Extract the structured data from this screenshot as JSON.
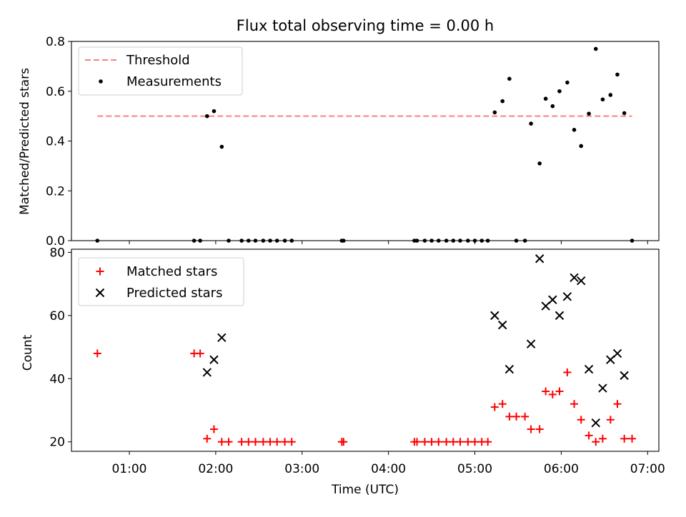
{
  "chart_data": [
    {
      "type": "scatter",
      "title": "Flux total observing time = 0.00 h",
      "ylabel": "Matched/Predicted stars",
      "xlim": [
        0.33,
        7.13
      ],
      "ylim": [
        0,
        0.8
      ],
      "yticks": [
        0.0,
        0.2,
        0.4,
        0.6,
        0.8
      ],
      "ytick_labels": [
        "0.0",
        "0.2",
        "0.4",
        "0.6",
        "0.8"
      ],
      "legend_position": "top-left",
      "legend": [
        {
          "label": "Threshold",
          "style": "dashed-line",
          "color": "#ff7f7f"
        },
        {
          "label": "Measurements",
          "style": "dot",
          "color": "#000000"
        }
      ],
      "threshold": {
        "value": 0.5,
        "x_start": 0.63,
        "x_end": 6.82
      },
      "series": [
        {
          "label": "Measurements",
          "color": "#000000",
          "points": [
            [
              0.63,
              0.0
            ],
            [
              1.75,
              0.0
            ],
            [
              1.82,
              0.0
            ],
            [
              1.9,
              0.5
            ],
            [
              1.98,
              0.52
            ],
            [
              2.07,
              0.377
            ],
            [
              2.15,
              0.0
            ],
            [
              2.3,
              0.0
            ],
            [
              2.38,
              0.0
            ],
            [
              2.46,
              0.0
            ],
            [
              2.55,
              0.0
            ],
            [
              2.63,
              0.0
            ],
            [
              2.71,
              0.0
            ],
            [
              2.8,
              0.0
            ],
            [
              2.88,
              0.0
            ],
            [
              3.46,
              0.0
            ],
            [
              3.48,
              0.0
            ],
            [
              4.3,
              0.0
            ],
            [
              4.33,
              0.0
            ],
            [
              4.42,
              0.0
            ],
            [
              4.5,
              0.0
            ],
            [
              4.58,
              0.0
            ],
            [
              4.67,
              0.0
            ],
            [
              4.75,
              0.0
            ],
            [
              4.83,
              0.0
            ],
            [
              4.92,
              0.0
            ],
            [
              5.0,
              0.0
            ],
            [
              5.08,
              0.0
            ],
            [
              5.15,
              0.0
            ],
            [
              5.23,
              0.515
            ],
            [
              5.32,
              0.56
            ],
            [
              5.4,
              0.65
            ],
            [
              5.48,
              0.0
            ],
            [
              5.58,
              0.0
            ],
            [
              5.65,
              0.47
            ],
            [
              5.75,
              0.31
            ],
            [
              5.82,
              0.57
            ],
            [
              5.9,
              0.54
            ],
            [
              5.98,
              0.6
            ],
            [
              6.07,
              0.635
            ],
            [
              6.15,
              0.445
            ],
            [
              6.23,
              0.38
            ],
            [
              6.32,
              0.51
            ],
            [
              6.4,
              0.77
            ],
            [
              6.48,
              0.567
            ],
            [
              6.57,
              0.585
            ],
            [
              6.65,
              0.667
            ],
            [
              6.73,
              0.512
            ],
            [
              6.82,
              0.0
            ]
          ]
        }
      ]
    },
    {
      "type": "scatter",
      "xlabel": "Time (UTC)",
      "ylabel": "Count",
      "xlim": [
        0.33,
        7.13
      ],
      "ylim": [
        17,
        81
      ],
      "xticks": [
        1,
        2,
        3,
        4,
        5,
        6,
        7
      ],
      "xtick_labels": [
        "01:00",
        "02:00",
        "03:00",
        "04:00",
        "05:00",
        "06:00",
        "07:00"
      ],
      "yticks": [
        20,
        40,
        60,
        80
      ],
      "ytick_labels": [
        "20",
        "40",
        "60",
        "80"
      ],
      "legend_position": "top-left",
      "legend": [
        {
          "label": "Matched stars",
          "style": "plus",
          "color": "#ff0000"
        },
        {
          "label": "Predicted stars",
          "style": "x",
          "color": "#000000"
        }
      ],
      "series": [
        {
          "label": "Matched stars",
          "marker": "plus",
          "color": "#ff0000",
          "points": [
            [
              0.63,
              48
            ],
            [
              1.75,
              48
            ],
            [
              1.82,
              48
            ],
            [
              1.9,
              21
            ],
            [
              1.98,
              24
            ],
            [
              2.07,
              20
            ],
            [
              2.15,
              20
            ],
            [
              2.3,
              20
            ],
            [
              2.38,
              20
            ],
            [
              2.46,
              20
            ],
            [
              2.55,
              20
            ],
            [
              2.63,
              20
            ],
            [
              2.71,
              20
            ],
            [
              2.8,
              20
            ],
            [
              2.88,
              20
            ],
            [
              3.46,
              20
            ],
            [
              3.48,
              20
            ],
            [
              4.3,
              20
            ],
            [
              4.33,
              20
            ],
            [
              4.42,
              20
            ],
            [
              4.5,
              20
            ],
            [
              4.58,
              20
            ],
            [
              4.67,
              20
            ],
            [
              4.75,
              20
            ],
            [
              4.83,
              20
            ],
            [
              4.92,
              20
            ],
            [
              5.0,
              20
            ],
            [
              5.08,
              20
            ],
            [
              5.15,
              20
            ],
            [
              5.23,
              31
            ],
            [
              5.32,
              32
            ],
            [
              5.4,
              28
            ],
            [
              5.48,
              28
            ],
            [
              5.58,
              28
            ],
            [
              5.65,
              24
            ],
            [
              5.75,
              24
            ],
            [
              5.82,
              36
            ],
            [
              5.9,
              35
            ],
            [
              5.98,
              36
            ],
            [
              6.07,
              42
            ],
            [
              6.15,
              32
            ],
            [
              6.23,
              27
            ],
            [
              6.32,
              22
            ],
            [
              6.4,
              20
            ],
            [
              6.48,
              21
            ],
            [
              6.57,
              27
            ],
            [
              6.65,
              32
            ],
            [
              6.73,
              21
            ],
            [
              6.82,
              21
            ]
          ]
        },
        {
          "label": "Predicted stars",
          "marker": "x",
          "color": "#000000",
          "points": [
            [
              1.9,
              42
            ],
            [
              1.98,
              46
            ],
            [
              2.07,
              53
            ],
            [
              5.23,
              60
            ],
            [
              5.32,
              57
            ],
            [
              5.4,
              43
            ],
            [
              5.65,
              51
            ],
            [
              5.75,
              78
            ],
            [
              5.82,
              63
            ],
            [
              5.9,
              65
            ],
            [
              5.98,
              60
            ],
            [
              6.07,
              66
            ],
            [
              6.15,
              72
            ],
            [
              6.23,
              71
            ],
            [
              6.32,
              43
            ],
            [
              6.4,
              26
            ],
            [
              6.48,
              37
            ],
            [
              6.57,
              46
            ],
            [
              6.65,
              48
            ],
            [
              6.73,
              41
            ]
          ]
        }
      ]
    }
  ]
}
